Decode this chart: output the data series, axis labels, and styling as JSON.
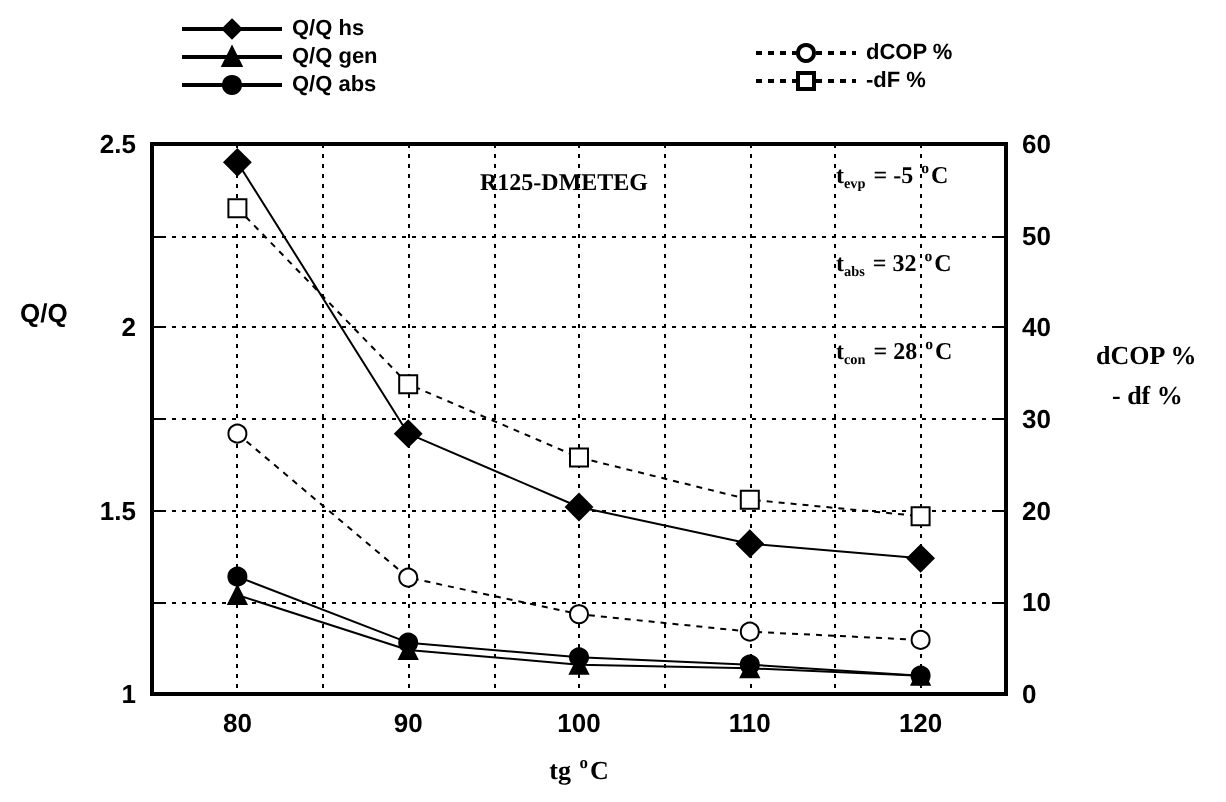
{
  "chart_data": {
    "type": "line",
    "xlabel": "tg $^{o}$C",
    "ylabel": "Q/Q",
    "y2label": "dCOP %\n- df %",
    "x": [
      80,
      90,
      100,
      110,
      120
    ],
    "xlim": [
      75,
      125
    ],
    "xticks": [
      {
        "value": 75,
        "label": null
      },
      80,
      {
        "value": 85,
        "label": null
      },
      90,
      {
        "value": 95,
        "label": null
      },
      100,
      {
        "value": 105,
        "label": null
      },
      110,
      {
        "value": 115,
        "label": null
      },
      120,
      {
        "value": 125,
        "label": null
      }
    ],
    "ylim": [
      1,
      2.5
    ],
    "yticks": [
      1,
      {
        "value": 1.25,
        "label": null
      },
      1.5,
      {
        "value": 1.75,
        "label": null
      },
      2,
      {
        "value": 2.25,
        "label": null
      },
      2.5
    ],
    "y2lim": [
      0,
      60
    ],
    "y2ticks": [
      0,
      10,
      20,
      30,
      40,
      50,
      60
    ],
    "series": [
      {
        "name": "Q/Q hs",
        "color": "#000000",
        "marker": "diamond",
        "line_style": "solid",
        "values": [
          2.45,
          1.71,
          1.51,
          1.41,
          1.37
        ]
      },
      {
        "name": "Q/Q gen",
        "color": "#000000",
        "marker": "triangle",
        "line_style": "solid",
        "values": [
          1.27,
          1.12,
          1.08,
          1.07,
          1.05
        ]
      },
      {
        "name": "Q/Q abs",
        "color": "#000000",
        "marker": "circle",
        "line_style": "solid",
        "values": [
          1.32,
          1.14,
          1.1,
          1.08,
          1.05
        ]
      },
      {
        "name": "dCOP %",
        "color": "#000000",
        "marker": "circle",
        "line_style": "dashed",
        "axis": "y2",
        "values": [
          28.4,
          12.7,
          8.7,
          6.8,
          5.9
        ]
      },
      {
        "name": "-dF %",
        "color": "#000000",
        "marker": "square",
        "line_style": "dashed",
        "axis": "y2",
        "values": [
          53,
          33.8,
          25.8,
          21.2,
          19.4
        ]
      }
    ],
    "annotations": [
      "R125-DMETEG",
      "t$_{evp}$ = -5 $^{o}$C",
      "t$_{abs}$ = 32 $^{o}$C",
      "t$_{con}$ = 28 $^{o}$C"
    ],
    "grid": true,
    "legend": "top"
  }
}
